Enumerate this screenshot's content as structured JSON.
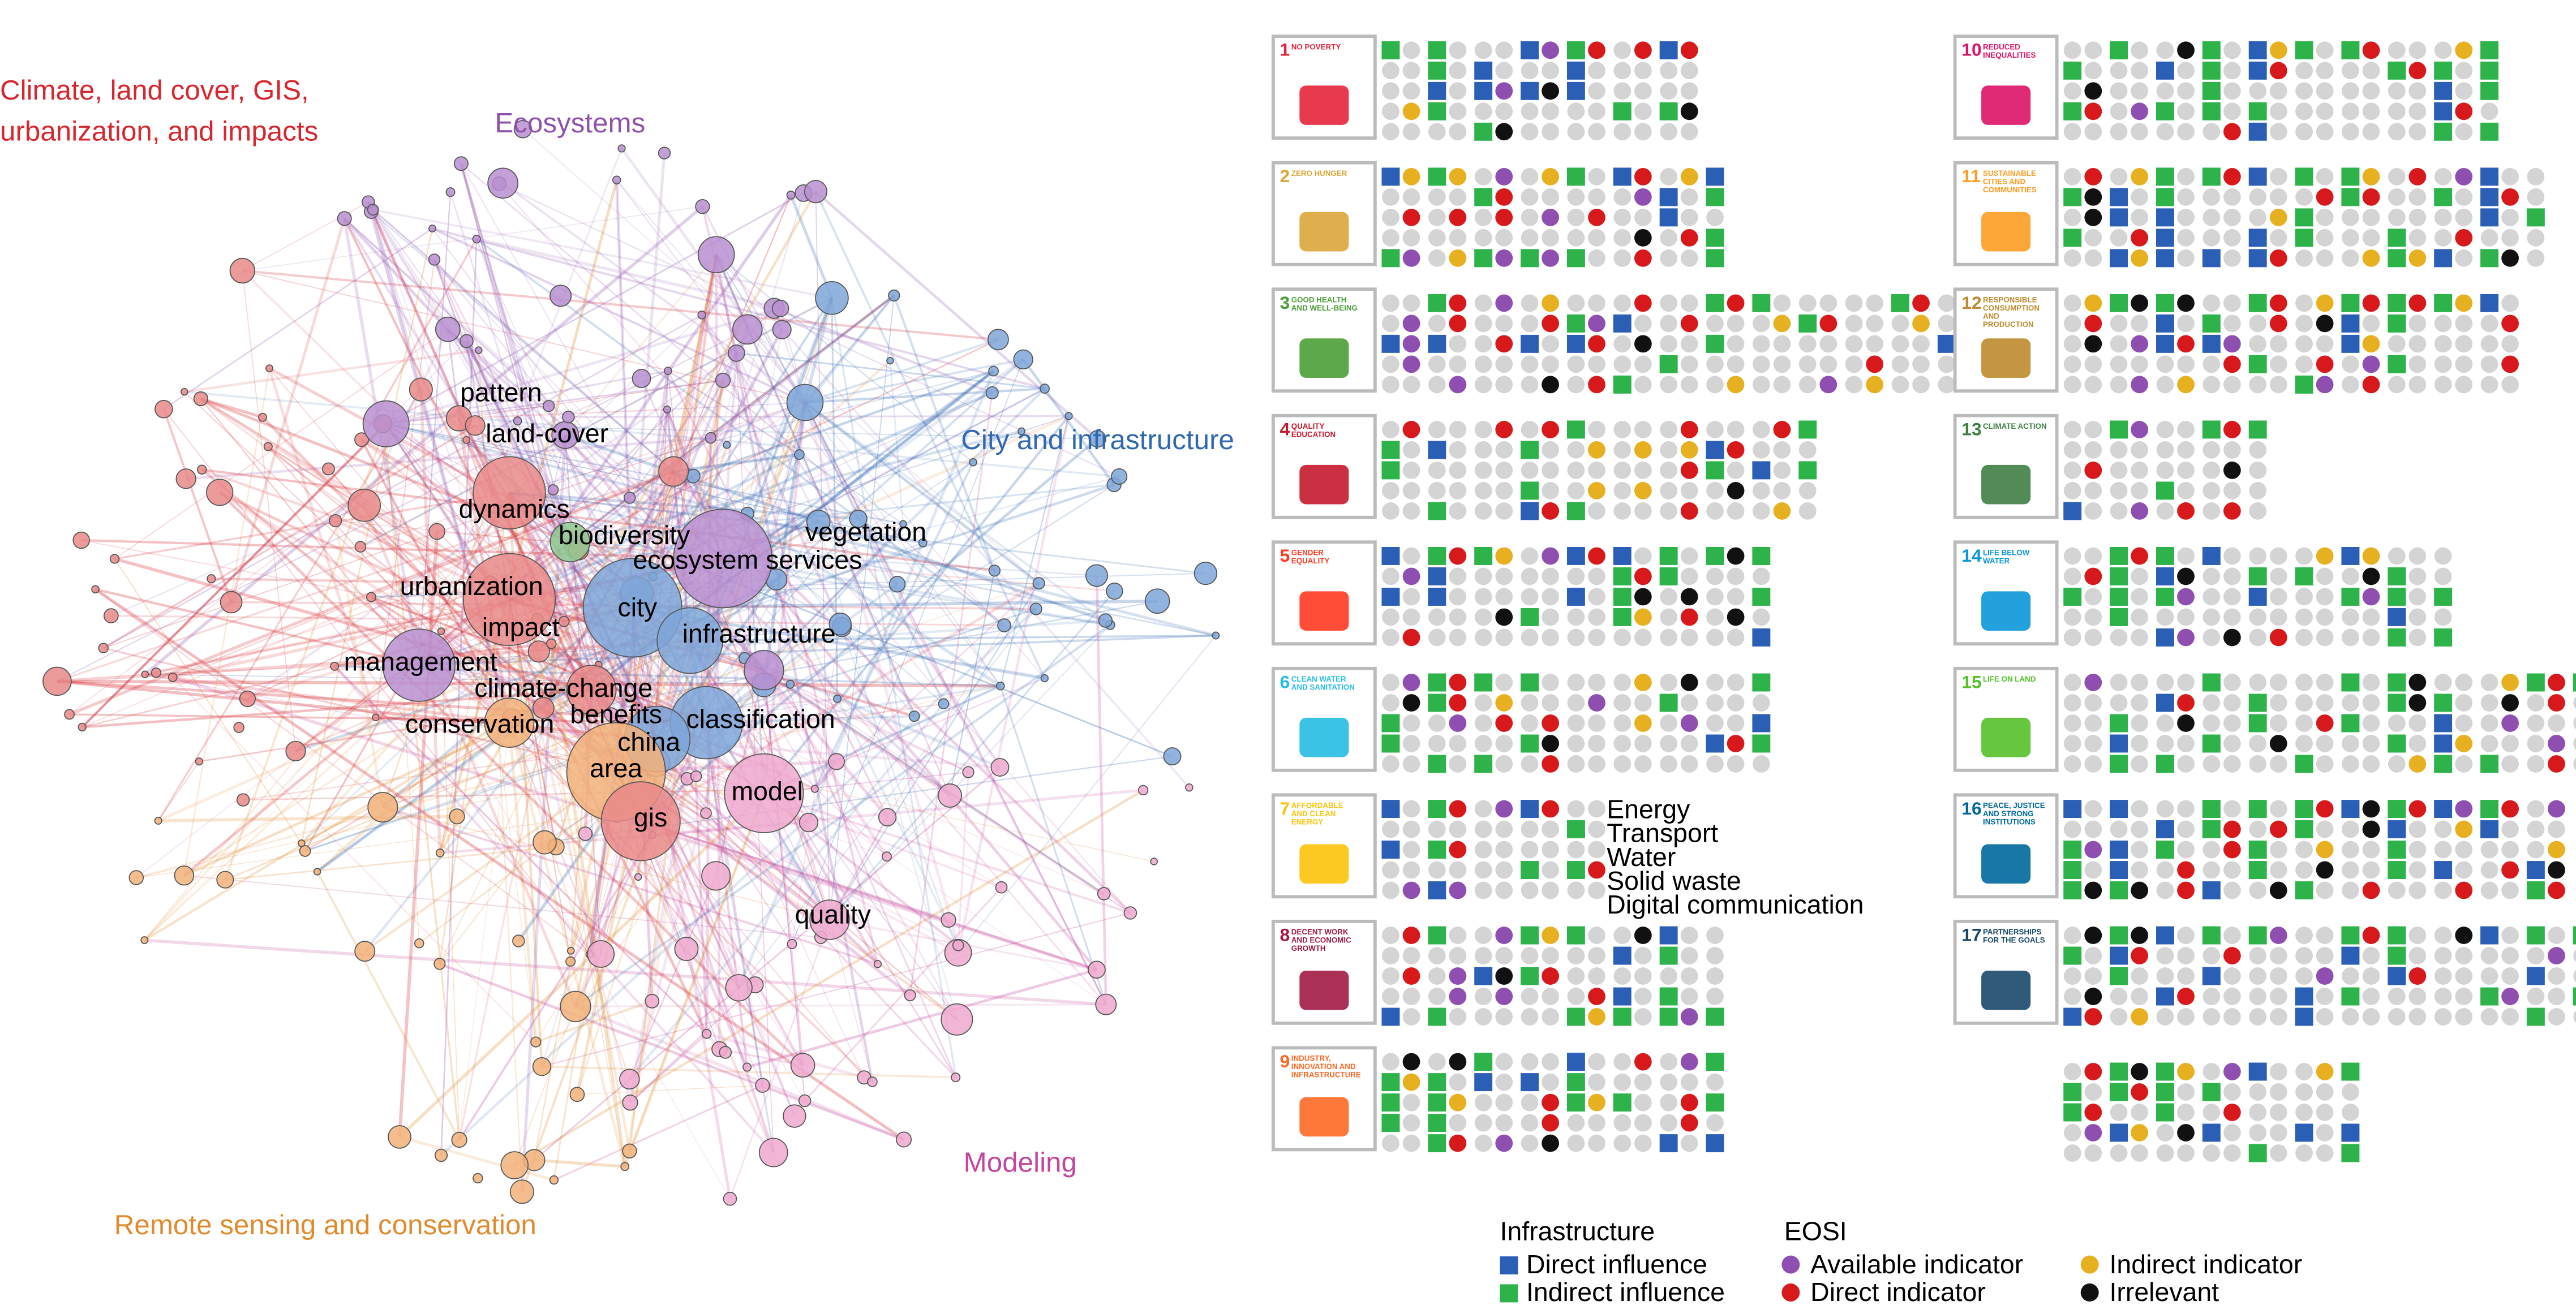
{
  "clusters": [
    {
      "lines": [
        "Climate, land cover, GIS,",
        "urbanization, and impacts"
      ],
      "color": "#d7262e"
    },
    {
      "lines": [
        "Ecosystems"
      ],
      "color": "#8e52ad"
    },
    {
      "lines": [
        "City and infrastructure"
      ],
      "color": "#2f67b1"
    },
    {
      "lines": [
        "Modeling"
      ],
      "color": "#c4459b"
    },
    {
      "lines": [
        "Remote sensing and conservation"
      ],
      "color": "#e08a2c"
    }
  ],
  "nodes": [
    "pattern",
    "land-cover",
    "dynamics",
    "biodiversity",
    "vegetation",
    "ecosystem services",
    "urbanization",
    "city",
    "impact",
    "infrastructure",
    "management",
    "climate-change",
    "benefits",
    "conservation",
    "classification",
    "china",
    "area",
    "model",
    "gis",
    "quality"
  ],
  "sdgs": [
    {
      "number": "1",
      "name": "NO POVERTY",
      "color": "#e5243b"
    },
    {
      "number": "2",
      "name": "ZERO HUNGER",
      "color": "#dda63a"
    },
    {
      "number": "3",
      "name": "GOOD HEALTH AND WELL-BEING",
      "color": "#4c9f38"
    },
    {
      "number": "4",
      "name": "QUALITY EDUCATION",
      "color": "#c5192d"
    },
    {
      "number": "5",
      "name": "GENDER EQUALITY",
      "color": "#ff3a21"
    },
    {
      "number": "6",
      "name": "CLEAN WATER AND SANITATION",
      "color": "#26bde2"
    },
    {
      "number": "7",
      "name": "AFFORDABLE AND CLEAN ENERGY",
      "color": "#fcc30b"
    },
    {
      "number": "8",
      "name": "DECENT WORK AND ECONOMIC GROWTH",
      "color": "#a21942"
    },
    {
      "number": "9",
      "name": "INDUSTRY, INNOVATION AND INFRASTRUCTURE",
      "color": "#fd6925"
    },
    {
      "number": "10",
      "name": "REDUCED INEQUALITIES",
      "color": "#dd1367"
    },
    {
      "number": "11",
      "name": "SUSTAINABLE CITIES AND COMMUNITIES",
      "color": "#fd9d24"
    },
    {
      "number": "12",
      "name": "RESPONSIBLE CONSUMPTION AND PRODUCTION",
      "color": "#bf8b2e"
    },
    {
      "number": "13",
      "name": "CLIMATE ACTION",
      "color": "#3f7e44"
    },
    {
      "number": "14",
      "name": "LIFE BELOW WATER",
      "color": "#0a97d9"
    },
    {
      "number": "15",
      "name": "LIFE ON LAND",
      "color": "#56c02b"
    },
    {
      "number": "16",
      "name": "PEACE, JUSTICE AND STRONG INSTITUTIONS",
      "color": "#00689d"
    },
    {
      "number": "17",
      "name": "PARTNERSHIPS FOR THE GOALS",
      "color": "#19486a"
    }
  ],
  "infrastructure_rows": [
    "Energy",
    "Transport",
    "Water",
    "Solid waste",
    "Digital communication"
  ],
  "legend": {
    "infrastructure_title": "Infrastructure",
    "infrastructure": [
      "Direct influence",
      "Indirect influence"
    ],
    "eosi_title": "EOSI",
    "eosi": [
      "Available indicator",
      "Indirect indicator",
      "Direct indicator",
      "Irrelevant"
    ]
  }
}
